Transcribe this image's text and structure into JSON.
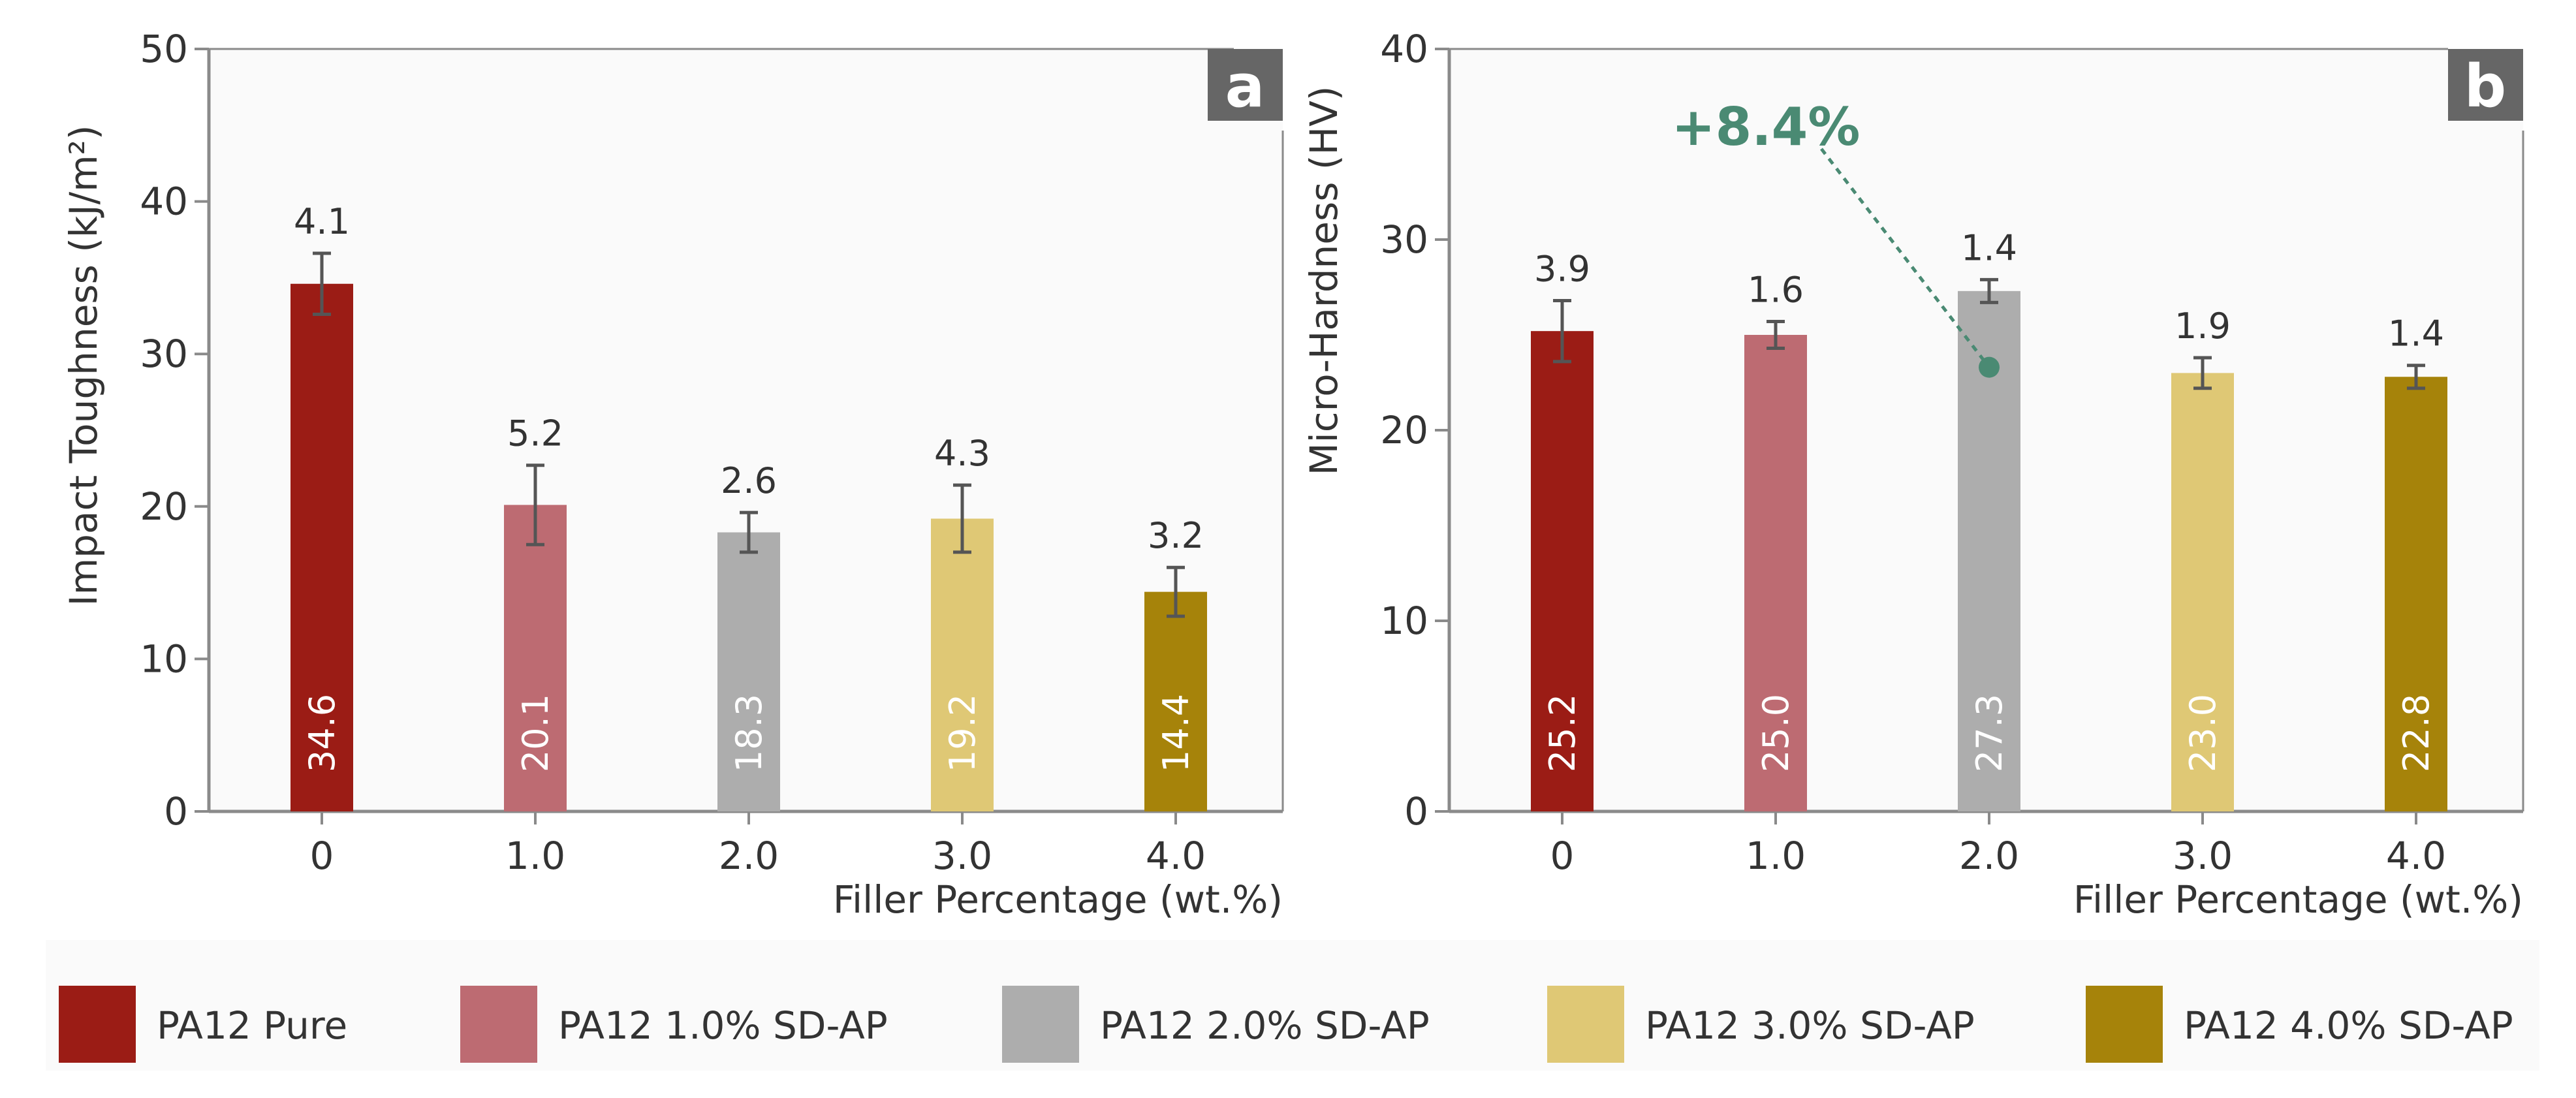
{
  "chart_data": [
    {
      "type": "bar",
      "panel": "a",
      "categories": [
        "0",
        "1.0",
        "2.0",
        "3.0",
        "4.0"
      ],
      "values": [
        34.6,
        20.1,
        18.3,
        19.2,
        14.4
      ],
      "errors": [
        4.1,
        5.2,
        2.6,
        4.3,
        3.2
      ],
      "error_bar_display": [
        2.0,
        2.6,
        1.3,
        2.2,
        1.6
      ],
      "colors": [
        "#9b1c15",
        "#bd6b72",
        "#adadad",
        "#dfc875",
        "#a6830a"
      ],
      "xlabel": "Filler Percentage (wt.%)",
      "ylabel": "Impact Toughness (kJ/m²)",
      "ylim": [
        0,
        50
      ],
      "yticks": [
        "0",
        "10",
        "20",
        "30",
        "40",
        "50"
      ],
      "grid": false
    },
    {
      "type": "bar",
      "panel": "b",
      "categories": [
        "0",
        "1.0",
        "2.0",
        "3.0",
        "4.0"
      ],
      "values": [
        25.2,
        25.0,
        27.3,
        23.0,
        22.8
      ],
      "errors": [
        3.9,
        1.6,
        1.4,
        1.9,
        1.4
      ],
      "error_bar_display": [
        1.6,
        0.7,
        0.6,
        0.8,
        0.6
      ],
      "colors": [
        "#9b1c15",
        "#bd6b72",
        "#adadad",
        "#dfc875",
        "#a6830a"
      ],
      "xlabel": "Filler Percentage (wt.%)",
      "ylabel": "Micro-Hardness (HV)",
      "ylim": [
        0,
        40
      ],
      "yticks": [
        "0",
        "10",
        "20",
        "30",
        "40"
      ],
      "grid": false,
      "annotation": {
        "text": "+8.4%",
        "category": "2.0",
        "point_value": 23.3,
        "color": "#4a8a73"
      }
    }
  ],
  "legend": {
    "position": "bottom",
    "items": [
      {
        "label": "PA12 Pure",
        "color": "#9b1c15"
      },
      {
        "label": "PA12 1.0% SD-AP",
        "color": "#bd6b72"
      },
      {
        "label": "PA12 2.0% SD-AP",
        "color": "#adadad"
      },
      {
        "label": "PA12 3.0% SD-AP",
        "color": "#dfc875"
      },
      {
        "label": "PA12 4.0% SD-AP",
        "color": "#a6830a"
      }
    ]
  }
}
